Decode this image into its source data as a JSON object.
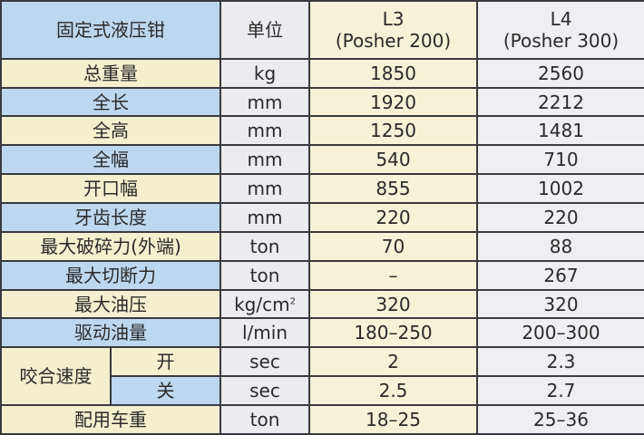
{
  "header": {
    "title": "固定式液压钳",
    "unit": "单位",
    "models": [
      {
        "name": "L3",
        "sub": "(Posher 200)"
      },
      {
        "name": "L4",
        "sub": "(Posher 300)"
      }
    ]
  },
  "rows": [
    {
      "label": "总重量",
      "unit": "kg",
      "l3": "1850",
      "l4": "2560"
    },
    {
      "label": "全长",
      "unit": "mm",
      "l3": "1920",
      "l4": "2212"
    },
    {
      "label": "全高",
      "unit": "mm",
      "l3": "1250",
      "l4": "1481"
    },
    {
      "label": "全幅",
      "unit": "mm",
      "l3": "540",
      "l4": "710"
    },
    {
      "label": "开口幅",
      "unit": "mm",
      "l3": "855",
      "l4": "1002"
    },
    {
      "label": "牙齿长度",
      "unit": "mm",
      "l3": "220",
      "l4": "220"
    },
    {
      "label": "最大破碎力(外端)",
      "unit": "ton",
      "l3": "70",
      "l4": "88"
    },
    {
      "label": "最大切断力",
      "unit": "ton",
      "l3": "–",
      "l4": "267"
    },
    {
      "label": "最大油压",
      "unit": "kg/cm",
      "unit_sup": "2",
      "l3": "320",
      "l4": "320"
    },
    {
      "label": "驱动油量",
      "unit": "l/min",
      "l3": "180–250",
      "l4": "200–300"
    }
  ],
  "speed": {
    "label": "咬合速度",
    "sub": [
      {
        "label": "开",
        "unit": "sec",
        "l3": "2",
        "l4": "2.3"
      },
      {
        "label": "关",
        "unit": "sec",
        "l3": "2.5",
        "l4": "2.7"
      }
    ]
  },
  "last": {
    "label": "配用车重",
    "unit": "ton",
    "l3": "18–25",
    "l4": "25–36"
  },
  "colors": {
    "blue": "#bdd7ee",
    "cream": "#f3efcf",
    "border": "#3a3a40"
  }
}
